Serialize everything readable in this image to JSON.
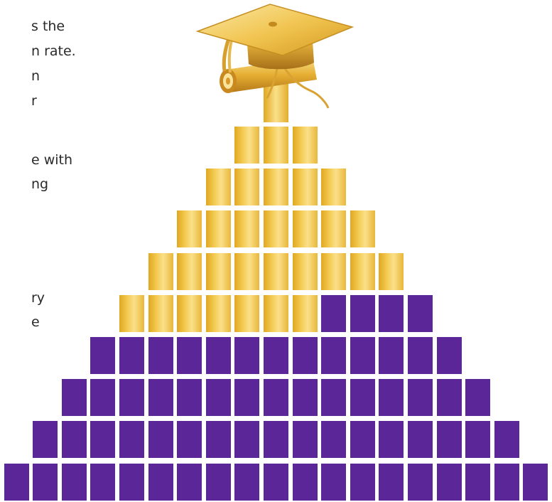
{
  "text_fragments": [
    "s the",
    "n rate.",
    "n",
    "r",
    "e with",
    "ng",
    "ry",
    "e"
  ],
  "pyramid": {
    "rows": [
      {
        "gold": 1,
        "purple": 0
      },
      {
        "gold": 3,
        "purple": 0
      },
      {
        "gold": 5,
        "purple": 0
      },
      {
        "gold": 7,
        "purple": 0
      },
      {
        "gold": 9,
        "purple": 0
      },
      {
        "gold": 7,
        "purple": 4
      },
      {
        "gold": 0,
        "purple": 13
      },
      {
        "gold": 0,
        "purple": 15
      },
      {
        "gold": 0,
        "purple": 17
      },
      {
        "gold": 0,
        "purple": 19
      }
    ]
  },
  "colors": {
    "gold": "#f0c24a",
    "purple": "#5b2698",
    "text": "#2a2a2a"
  },
  "icon": "graduation-cap-diploma-icon"
}
